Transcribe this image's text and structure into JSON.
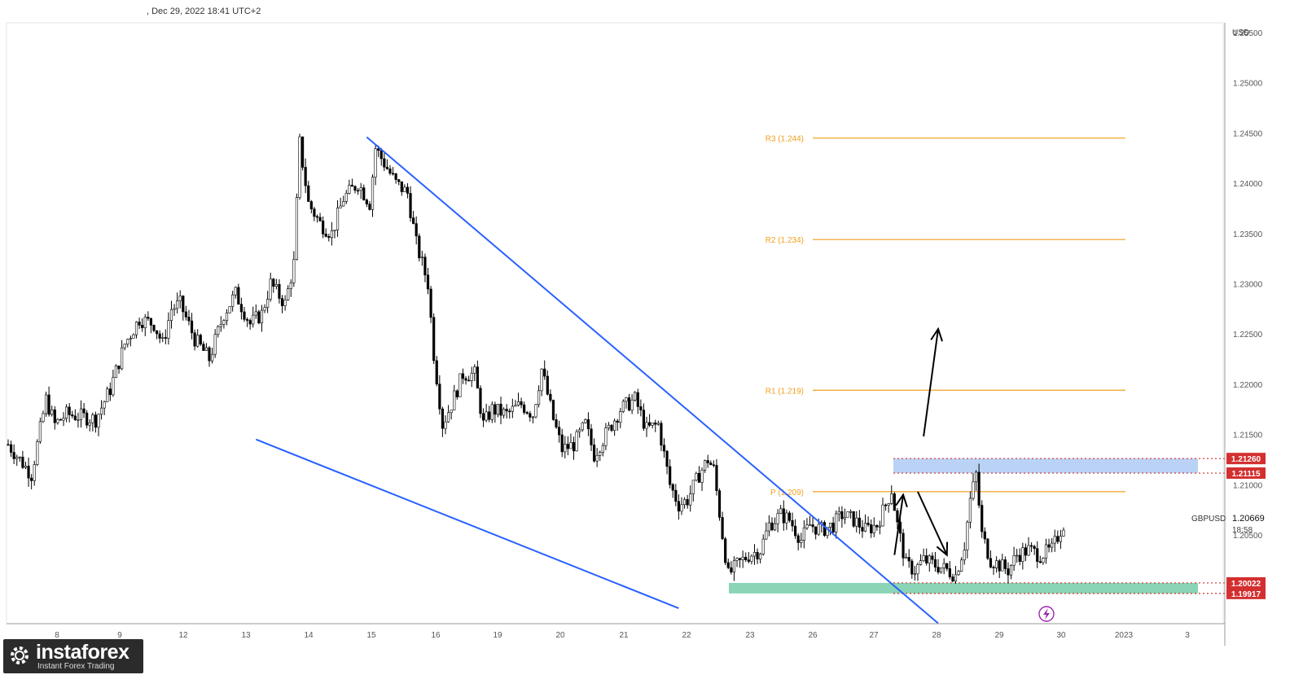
{
  "header": {
    "text": ", Dec 29, 2022 18:41 UTC+2"
  },
  "logo": {
    "brand": "instaforex",
    "tagline": "Instant Forex Trading"
  },
  "chart_data": {
    "type": "candlestick",
    "symbol": "GBPUSD",
    "currency": "USD",
    "last_price": "1.20669",
    "countdown": "18:58",
    "ylim": [
      1.196,
      1.255
    ],
    "y_ticks": [
      "1.25500",
      "1.25000",
      "1.24500",
      "1.24000",
      "1.23500",
      "1.23000",
      "1.22500",
      "1.22000",
      "1.21500",
      "1.21000",
      "1.20500"
    ],
    "x_ticks": [
      "8",
      "9",
      "12",
      "13",
      "14",
      "15",
      "16",
      "19",
      "20",
      "21",
      "22",
      "23",
      "26",
      "27",
      "28",
      "29",
      "30",
      "2023",
      "3"
    ],
    "price_path": [
      [
        0,
        1.214
      ],
      [
        0.8,
        1.211
      ],
      [
        1.3,
        1.2185
      ],
      [
        1.6,
        1.216
      ],
      [
        2.0,
        1.217
      ],
      [
        2.5,
        1.2168
      ],
      [
        3.0,
        1.2165
      ],
      [
        3.5,
        1.2195
      ],
      [
        4.0,
        1.224
      ],
      [
        4.5,
        1.2265
      ],
      [
        5.0,
        1.226
      ],
      [
        5.3,
        1.224
      ],
      [
        5.6,
        1.2275
      ],
      [
        5.9,
        1.228
      ],
      [
        6.4,
        1.2245
      ],
      [
        6.9,
        1.2225
      ],
      [
        7.4,
        1.227
      ],
      [
        7.8,
        1.229
      ],
      [
        8.3,
        1.226
      ],
      [
        8.7,
        1.227
      ],
      [
        9.0,
        1.23
      ],
      [
        9.5,
        1.228
      ],
      [
        9.8,
        1.232
      ],
      [
        10.0,
        1.244
      ],
      [
        10.3,
        1.238
      ],
      [
        10.7,
        1.236
      ],
      [
        11.1,
        1.235
      ],
      [
        11.5,
        1.2385
      ],
      [
        12.0,
        1.24
      ],
      [
        12.4,
        1.238
      ],
      [
        12.6,
        1.2435
      ],
      [
        12.9,
        1.242
      ],
      [
        13.3,
        1.24
      ],
      [
        13.7,
        1.239
      ],
      [
        14.0,
        1.234
      ],
      [
        14.4,
        1.23
      ],
      [
        14.6,
        1.223
      ],
      [
        14.9,
        1.216
      ],
      [
        15.2,
        1.218
      ],
      [
        15.6,
        1.221
      ],
      [
        16.0,
        1.221
      ],
      [
        16.3,
        1.216
      ],
      [
        16.6,
        1.2175
      ],
      [
        17.1,
        1.217
      ],
      [
        17.6,
        1.218
      ],
      [
        18.0,
        1.217
      ],
      [
        18.3,
        1.2215
      ],
      [
        18.7,
        1.2165
      ],
      [
        19.0,
        1.2135
      ],
      [
        19.4,
        1.214
      ],
      [
        19.8,
        1.216
      ],
      [
        20.1,
        1.213
      ],
      [
        20.5,
        1.215
      ],
      [
        21.0,
        1.2175
      ],
      [
        21.5,
        1.2185
      ],
      [
        21.9,
        1.2155
      ],
      [
        22.3,
        1.216
      ],
      [
        22.7,
        1.21
      ],
      [
        23.0,
        1.208
      ],
      [
        23.3,
        1.2085
      ],
      [
        23.7,
        1.211
      ],
      [
        24.0,
        1.2125
      ],
      [
        24.2,
        1.2115
      ],
      [
        24.5,
        1.205
      ],
      [
        24.7,
        1.201
      ],
      [
        25.0,
        1.202
      ],
      [
        25.4,
        1.203
      ],
      [
        25.8,
        1.2035
      ],
      [
        26.1,
        1.206
      ],
      [
        26.5,
        1.207
      ],
      [
        26.8,
        1.2065
      ],
      [
        27.2,
        1.2045
      ],
      [
        27.5,
        1.206
      ],
      [
        27.9,
        1.2055
      ],
      [
        28.3,
        1.206
      ],
      [
        28.6,
        1.207
      ],
      [
        29.0,
        1.2065
      ],
      [
        29.4,
        1.2055
      ],
      [
        29.8,
        1.206
      ],
      [
        30.1,
        1.208
      ],
      [
        30.3,
        1.2095
      ],
      [
        30.5,
        1.206
      ],
      [
        30.8,
        1.202
      ],
      [
        31.1,
        1.2015
      ],
      [
        31.4,
        1.2025
      ],
      [
        31.8,
        1.202
      ],
      [
        32.2,
        1.2015
      ],
      [
        32.5,
        1.201
      ],
      [
        32.8,
        1.204
      ],
      [
        33.0,
        1.2085
      ],
      [
        33.2,
        1.211
      ],
      [
        33.4,
        1.205
      ],
      [
        33.7,
        1.2025
      ],
      [
        34.0,
        1.202
      ],
      [
        34.3,
        1.2015
      ],
      [
        34.6,
        1.203
      ],
      [
        35.0,
        1.2035
      ],
      [
        35.4,
        1.203
      ],
      [
        35.8,
        1.2035
      ],
      [
        36.1,
        1.2055
      ],
      [
        36.3,
        1.20669
      ]
    ],
    "pivot_levels": [
      {
        "label": "R3 (1.244)",
        "value": 1.2445
      },
      {
        "label": "R2 (1.234)",
        "value": 1.2344
      },
      {
        "label": "R1 (1.219)",
        "value": 1.2194
      },
      {
        "label": "P (1.209)",
        "value": 1.2093
      }
    ],
    "zones": [
      {
        "name": "resistance-zone",
        "top": 1.2126,
        "bottom": 1.21115,
        "color": "#b3cdf5"
      },
      {
        "name": "support-zone",
        "top": 1.20022,
        "bottom": 1.19917,
        "color": "#7ecfae"
      }
    ],
    "price_labels": [
      {
        "text": "1.21260",
        "value": 1.2126
      },
      {
        "text": "1.21115",
        "value": 1.21115
      },
      {
        "text": "1.20022",
        "value": 1.20022
      },
      {
        "text": "1.19917",
        "value": 1.19917
      }
    ],
    "wedge": {
      "upper": [
        [
          12.3,
          1.2446
        ],
        [
          31.9,
          1.1962
        ]
      ],
      "lower": [
        [
          8.5,
          1.2145
        ],
        [
          23.0,
          1.1977
        ]
      ]
    },
    "arrows": [
      {
        "from": [
          31.4,
          1.2148
        ],
        "to": [
          31.9,
          1.2255
        ]
      },
      {
        "from": [
          30.4,
          1.203
        ],
        "to": [
          30.7,
          1.209
        ]
      },
      {
        "from": [
          31.2,
          1.2093
        ],
        "to": [
          32.2,
          1.203
        ]
      }
    ],
    "colors": {
      "accent": "#2962ff",
      "pivot": "#f0a01e",
      "label_bg": "#d32f2f",
      "candle": "#000000"
    }
  }
}
